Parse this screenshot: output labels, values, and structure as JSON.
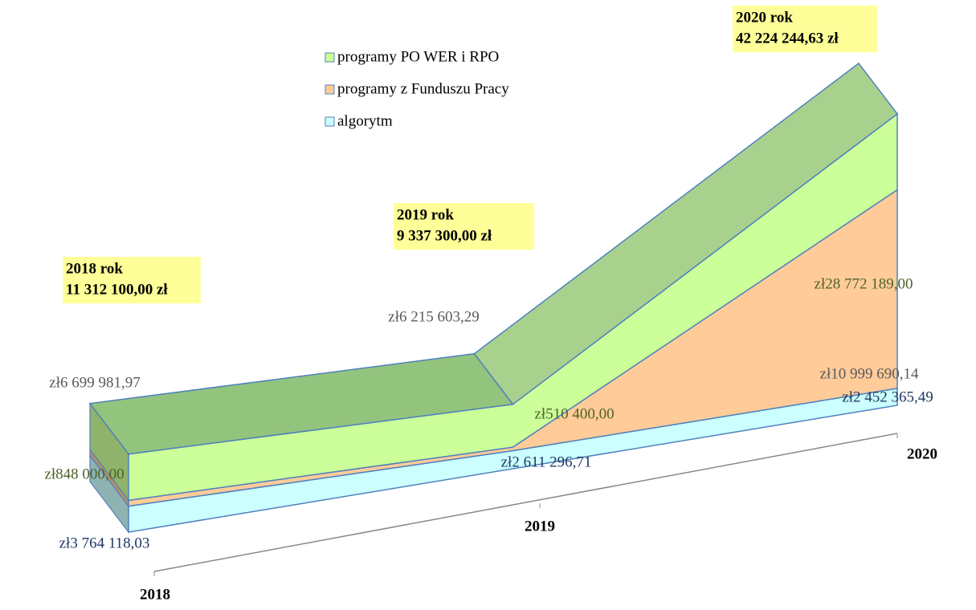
{
  "chart_data": {
    "type": "area3d",
    "categories": [
      "2018",
      "2019",
      "2020"
    ],
    "series": [
      {
        "name": "algorytm",
        "color": "#ccffff",
        "values": [
          3764118.03,
          2611296.71,
          2452365.49
        ],
        "value_labels": [
          "zł3 764 118,03",
          "zł2 611 296,71",
          "zł2 452 365,49"
        ]
      },
      {
        "name": "programy z Funduszu Pracy",
        "color": "#ffcc99",
        "values": [
          848000.0,
          510400.0,
          28772189.0
        ],
        "value_labels": [
          "zł848 000,00",
          "zł510 400,00",
          "zł28 772 189,00"
        ]
      },
      {
        "name": "programy PO WER i RPO",
        "color": "#ccff99",
        "values": [
          6699981.97,
          6215603.29,
          10999690.14
        ],
        "value_labels": [
          "zł6 699 981,97",
          "zł6 215 603,29",
          "zł10 999 690,14"
        ]
      }
    ],
    "annotations": [
      {
        "lines": [
          "2018 rok",
          "11 312 100,00 zł"
        ]
      },
      {
        "lines": [
          "2019 rok",
          "9 337 300,00 zł"
        ]
      },
      {
        "lines": [
          "2020 rok",
          "42 224 244,63 zł"
        ]
      }
    ],
    "legend": "top"
  }
}
